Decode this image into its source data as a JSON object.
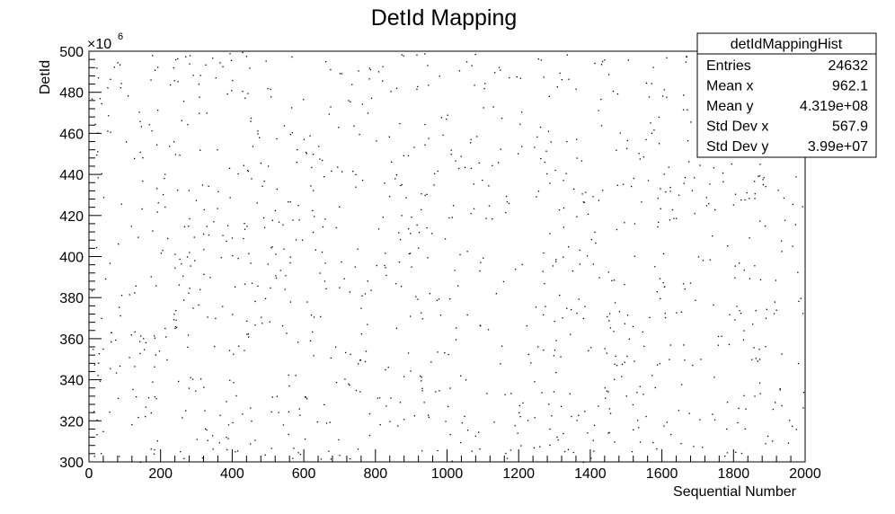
{
  "chart_data": {
    "type": "scatter",
    "title": "DetId Mapping",
    "xlabel": "Sequential Number",
    "ylabel": "DetId",
    "y_exponent": "×10",
    "y_exponent_power": "6",
    "xlim": [
      0,
      2000
    ],
    "ylim": [
      300,
      500
    ],
    "x_ticks": [
      "0",
      "200",
      "400",
      "600",
      "800",
      "1000",
      "1200",
      "1400",
      "1600",
      "1800",
      "2000"
    ],
    "y_ticks": [
      "300",
      "320",
      "340",
      "360",
      "380",
      "400",
      "420",
      "440",
      "460",
      "480",
      "500"
    ],
    "grid": false,
    "marker_color": "#000000",
    "x_range_data": [
      0,
      1996
    ],
    "y_range_data": [
      300,
      500
    ],
    "approx_visible_points": 1100
  },
  "stats_box": {
    "title": "detIdMappingHist",
    "rows": [
      {
        "label": "Entries",
        "value": "24632"
      },
      {
        "label": "Mean x",
        "value": "962.1"
      },
      {
        "label": "Mean y",
        "value": "4.319e+08"
      },
      {
        "label": "Std Dev x",
        "value": "567.9"
      },
      {
        "label": "Std Dev y",
        "value": "3.99e+07"
      }
    ]
  }
}
